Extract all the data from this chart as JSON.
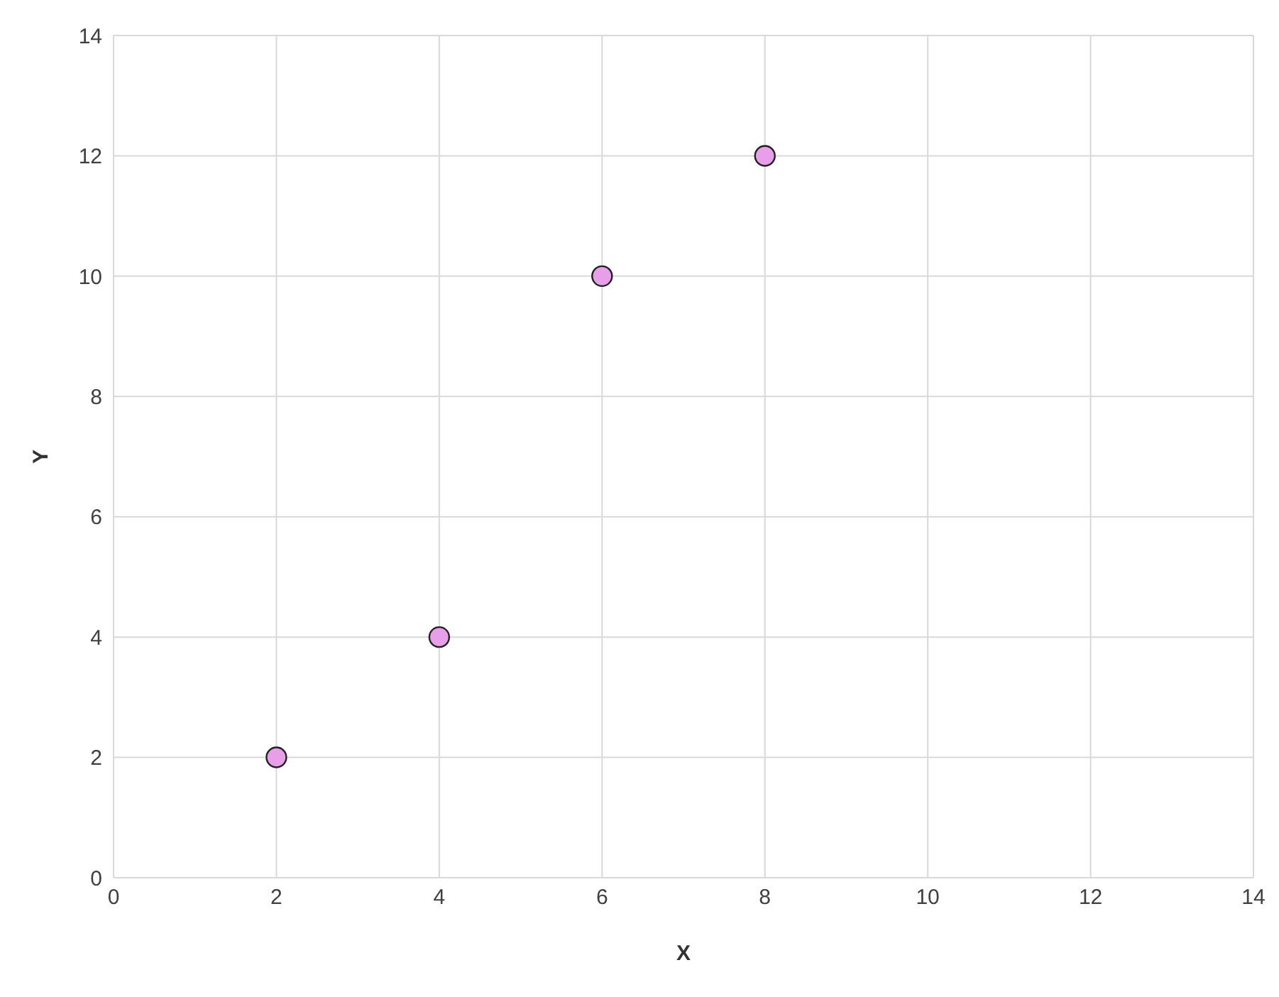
{
  "chart_data": {
    "type": "scatter",
    "xlabel": "X",
    "ylabel": "Y",
    "x": [
      2,
      4,
      6,
      8
    ],
    "series": [
      {
        "color": "#e89ee8",
        "values": [
          2,
          4,
          10,
          12
        ]
      }
    ],
    "xlim": [
      0,
      14
    ],
    "xticks": [
      0,
      2,
      4,
      6,
      8,
      10,
      12,
      14
    ],
    "ylim": [
      0,
      14
    ],
    "yticks": [
      0,
      2,
      4,
      6,
      8,
      10,
      12,
      14
    ],
    "grid": true,
    "marker": "circle"
  }
}
